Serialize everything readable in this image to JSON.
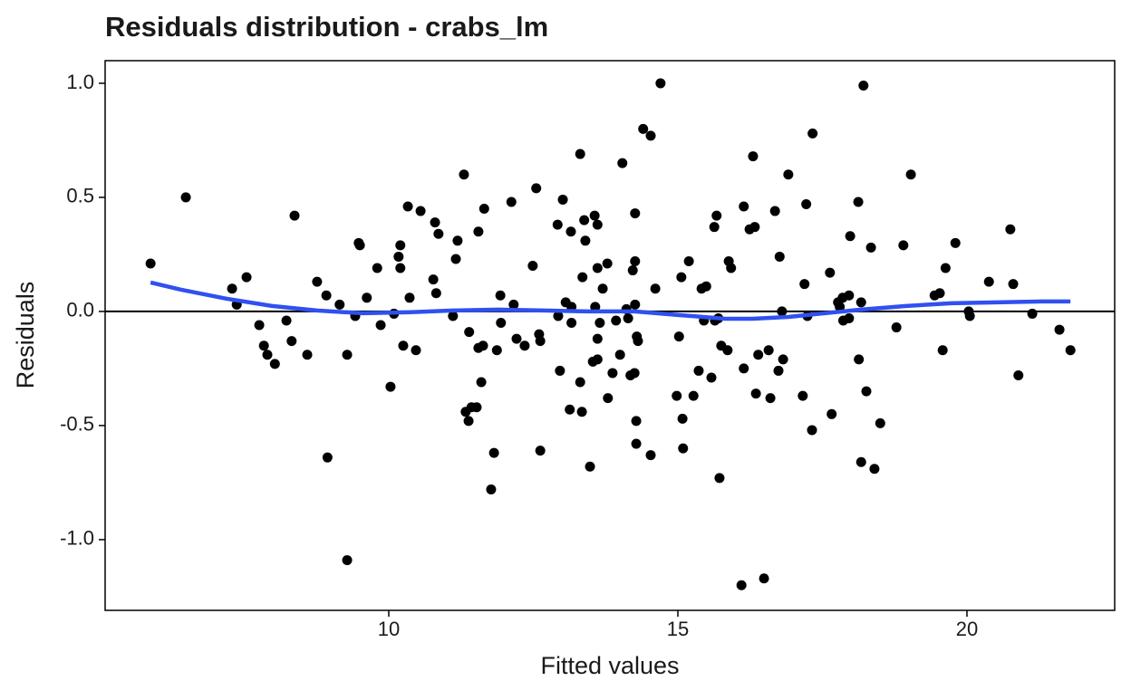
{
  "chart_data": {
    "type": "scatter",
    "title": "Residuals distribution - crabs_lm",
    "x_label": "Fitted values",
    "y_label": "Residuals",
    "xlim": [
      5.094,
      22.555
    ],
    "ylim": [
      -1.31,
      1.099
    ],
    "xticks": [
      10,
      15,
      20
    ],
    "yticks": [
      {
        "value": 1,
        "label": "1.0"
      },
      0.5,
      {
        "value": 0,
        "label": "0.0"
      },
      -0.5,
      {
        "value": -1,
        "label": "-1.0"
      }
    ],
    "hline": 0,
    "series": [
      {
        "type": "scatter",
        "color": "#000000",
        "x": [
          5.88,
          6.49,
          7.29,
          7.37,
          7.54,
          7.76,
          7.84,
          7.9,
          8.03,
          8.23,
          8.32,
          8.37,
          8.59,
          8.76,
          8.92,
          8.94,
          9.15,
          9.28,
          9.28,
          9.42,
          9.48,
          9.5,
          9.62,
          9.8,
          9.86,
          10.03,
          10.09,
          10.17,
          10.2,
          10.2,
          10.25,
          10.33,
          10.36,
          10.47,
          10.55,
          10.77,
          10.8,
          10.82,
          10.86,
          11.11,
          11.16,
          11.19,
          11.3,
          11.33,
          11.38,
          11.39,
          11.43,
          11.52,
          11.55,
          11.55,
          11.6,
          11.63,
          11.65,
          11.77,
          11.82,
          11.87,
          11.94,
          11.93,
          12.12,
          12.16,
          12.21,
          12.35,
          12.49,
          12.55,
          12.6,
          12.62,
          12.62,
          12.92,
          12.93,
          12.96,
          13.01,
          13.06,
          13.13,
          13.15,
          13.16,
          13.16,
          13.31,
          13.31,
          13.34,
          13.35,
          13.38,
          13.4,
          13.48,
          13.53,
          13.56,
          13.57,
          13.61,
          13.61,
          13.61,
          13.61,
          13.65,
          13.7,
          13.78,
          13.79,
          13.87,
          13.93,
          14.0,
          14.04,
          14.11,
          14.14,
          14.18,
          14.22,
          14.25,
          14.26,
          14.26,
          14.26,
          14.29,
          14.31,
          14.28,
          14.28,
          14.4,
          14.53,
          14.53,
          14.61,
          14.7,
          14.98,
          15.02,
          15.06,
          15.08,
          15.09,
          15.19,
          15.27,
          15.36,
          15.41,
          15.45,
          15.49,
          15.58,
          15.63,
          15.64,
          15.67,
          15.7,
          15.72,
          15.75,
          15.86,
          15.88,
          15.92,
          16.1,
          16.14,
          16.14,
          16.24,
          16.3,
          16.33,
          16.35,
          16.39,
          16.49,
          16.57,
          16.6,
          16.68,
          16.74,
          16.76,
          16.8,
          16.82,
          16.91,
          17.16,
          17.19,
          17.22,
          17.24,
          17.32,
          17.33,
          17.63,
          17.66,
          17.77,
          17.8,
          17.85,
          17.86,
          17.96,
          17.96,
          17.98,
          18.12,
          18.13,
          18.17,
          18.17,
          18.21,
          18.26,
          18.34,
          18.4,
          18.5,
          18.78,
          18.9,
          19.03,
          19.44,
          19.53,
          19.58,
          19.63,
          19.8,
          20.03,
          20.05,
          20.38,
          20.75,
          20.8,
          20.89,
          21.13,
          21.6,
          21.79
        ],
        "values": [
          0.21,
          0.5,
          0.1,
          0.03,
          0.15,
          -0.06,
          -0.15,
          -0.19,
          -0.23,
          -0.04,
          -0.13,
          0.42,
          -0.19,
          0.13,
          0.07,
          -0.64,
          0.03,
          -0.19,
          -1.09,
          -0.02,
          0.3,
          0.29,
          0.06,
          0.19,
          -0.06,
          -0.33,
          -0.01,
          0.24,
          0.29,
          0.19,
          -0.15,
          0.46,
          0.06,
          -0.17,
          0.44,
          0.14,
          0.39,
          0.08,
          0.34,
          -0.02,
          0.23,
          0.31,
          0.6,
          -0.44,
          -0.48,
          -0.09,
          -0.42,
          -0.42,
          0.35,
          -0.16,
          -0.31,
          -0.15,
          0.45,
          -0.78,
          -0.62,
          -0.17,
          -0.05,
          0.07,
          0.48,
          0.03,
          -0.12,
          -0.15,
          0.2,
          0.54,
          -0.1,
          -0.13,
          -0.61,
          0.38,
          -0.02,
          -0.26,
          0.49,
          0.04,
          -0.43,
          0.35,
          0.02,
          -0.05,
          0.69,
          -0.31,
          -0.44,
          0.15,
          0.4,
          0.31,
          -0.68,
          -0.22,
          0.42,
          0.02,
          0.38,
          -0.21,
          -0.12,
          0.19,
          -0.05,
          0.1,
          0.21,
          -0.38,
          -0.27,
          -0.04,
          -0.19,
          0.65,
          0.01,
          -0.03,
          -0.28,
          0.18,
          -0.27,
          0.43,
          0.22,
          0.03,
          -0.11,
          -0.13,
          -0.48,
          -0.58,
          0.8,
          0.77,
          -0.63,
          0.1,
          1.0,
          -0.37,
          -0.11,
          0.15,
          -0.47,
          -0.6,
          0.22,
          -0.37,
          -0.26,
          0.1,
          -0.04,
          0.11,
          -0.29,
          0.37,
          -0.04,
          0.42,
          -0.03,
          -0.73,
          -0.15,
          -0.17,
          0.22,
          0.19,
          -1.2,
          -0.25,
          0.46,
          0.36,
          0.68,
          0.37,
          -0.36,
          -0.19,
          -1.17,
          -0.17,
          -0.38,
          0.44,
          -0.26,
          0.24,
          0.0,
          -0.21,
          0.6,
          -0.37,
          0.12,
          0.47,
          -0.02,
          -0.52,
          0.78,
          0.17,
          -0.45,
          0.04,
          0.02,
          0.06,
          -0.04,
          0.07,
          -0.03,
          0.33,
          0.48,
          -0.21,
          0.04,
          -0.66,
          0.99,
          -0.35,
          0.28,
          -0.69,
          -0.49,
          -0.07,
          0.29,
          0.6,
          0.07,
          0.08,
          -0.17,
          0.19,
          0.3,
          0.0,
          -0.02,
          0.13,
          0.36,
          0.12,
          -0.28,
          -0.01,
          -0.08,
          -0.17
        ]
      },
      {
        "type": "line",
        "color": "#3050f0",
        "x": [
          5.88,
          6.41,
          7.19,
          7.98,
          8.76,
          9.55,
          10.33,
          11.11,
          11.9,
          12.68,
          13.46,
          14.25,
          15.03,
          15.82,
          16.29,
          16.91,
          17.38,
          18.17,
          18.95,
          19.73,
          20.52,
          21.3,
          21.79
        ],
        "values": [
          0.127,
          0.095,
          0.056,
          0.024,
          0.004,
          -0.008,
          -0.004,
          0.004,
          0.008,
          0.004,
          0,
          0,
          -0.016,
          -0.032,
          -0.032,
          -0.024,
          -0.012,
          0.008,
          0.024,
          0.036,
          0.04,
          0.044,
          0.044
        ]
      }
    ]
  }
}
